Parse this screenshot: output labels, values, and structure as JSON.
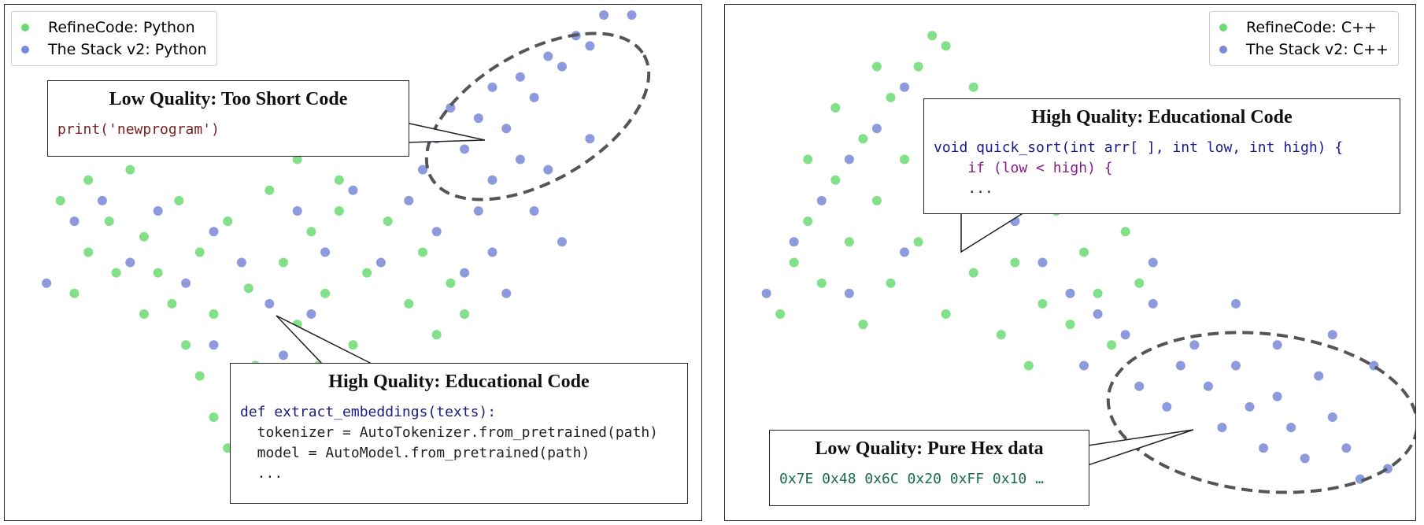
{
  "chart_data": [
    {
      "type": "scatter",
      "legend": "upper left",
      "xlim": [
        0,
        100
      ],
      "ylim": [
        0,
        100
      ],
      "series": [
        {
          "name": "RefineCode: Python",
          "color": "#2fcc3a",
          "x": [
            8,
            12,
            15,
            18,
            20,
            22,
            25,
            28,
            30,
            32,
            35,
            36,
            38,
            40,
            42,
            44,
            46,
            48,
            50,
            52,
            55,
            58,
            60,
            62,
            64,
            28,
            30,
            32,
            34,
            26,
            24,
            20,
            16,
            12,
            10,
            40,
            38,
            45,
            54,
            66,
            48,
            42,
            36
          ],
          "y": [
            62,
            66,
            58,
            68,
            55,
            48,
            62,
            52,
            40,
            58,
            45,
            30,
            64,
            50,
            38,
            56,
            44,
            60,
            34,
            48,
            58,
            42,
            52,
            36,
            46,
            28,
            20,
            14,
            24,
            34,
            42,
            40,
            48,
            52,
            44,
            26,
            18,
            30,
            28,
            40,
            66,
            70,
            72
          ]
        },
        {
          "name": "The Stack v2: Python",
          "color": "#4159c8",
          "x": [
            6,
            10,
            14,
            18,
            22,
            26,
            30,
            34,
            38,
            42,
            46,
            50,
            54,
            58,
            62,
            66,
            68,
            70,
            72,
            36,
            40,
            44,
            30,
            60,
            62,
            64,
            66,
            68,
            70,
            72,
            74,
            76,
            78,
            80,
            82,
            84,
            86,
            90,
            70,
            76,
            80,
            78,
            74,
            84
          ],
          "y": [
            46,
            58,
            62,
            50,
            60,
            46,
            56,
            50,
            42,
            60,
            52,
            64,
            50,
            62,
            56,
            48,
            60,
            52,
            44,
            22,
            32,
            40,
            34,
            68,
            74,
            80,
            72,
            78,
            84,
            76,
            86,
            82,
            90,
            88,
            94,
            92,
            98,
            98,
            66,
            60,
            54,
            68,
            70,
            74
          ]
        }
      ],
      "annotations": [
        {
          "title": "Low Quality: Too Short Code",
          "code": [
            "print('newprogram')"
          ]
        },
        {
          "title": "High Quality: Educational Code",
          "code": [
            "def extract_embeddings(texts):",
            "  tokenizer = AutoTokenizer.from_pretrained(path)",
            "  model = AutoModel.from_pretrained(path)",
            "  ..."
          ]
        }
      ]
    },
    {
      "type": "scatter",
      "legend": "upper right",
      "xlim": [
        0,
        100
      ],
      "ylim": [
        0,
        100
      ],
      "series": [
        {
          "name": "RefineCode: C++",
          "color": "#2fcc3a",
          "x": [
            8,
            10,
            12,
            14,
            16,
            18,
            20,
            22,
            24,
            26,
            28,
            30,
            32,
            34,
            36,
            38,
            40,
            42,
            44,
            46,
            48,
            50,
            52,
            54,
            56,
            20,
            24,
            28,
            32,
            36,
            40,
            44,
            12,
            16,
            22,
            30,
            60,
            58
          ],
          "y": [
            40,
            50,
            58,
            46,
            66,
            54,
            74,
            62,
            82,
            70,
            88,
            78,
            92,
            66,
            84,
            58,
            74,
            50,
            68,
            42,
            60,
            38,
            52,
            44,
            34,
            38,
            46,
            54,
            40,
            48,
            36,
            30,
            70,
            80,
            88,
            94,
            46,
            56
          ]
        },
        {
          "name": "The Stack v2: C++",
          "color": "#4159c8",
          "x": [
            6,
            10,
            14,
            18,
            22,
            26,
            30,
            34,
            38,
            42,
            46,
            50,
            54,
            58,
            62,
            66,
            60,
            64,
            68,
            70,
            72,
            74,
            76,
            78,
            80,
            82,
            84,
            86,
            88,
            90,
            92,
            94,
            96,
            74,
            80,
            88,
            62,
            52,
            26,
            18
          ],
          "y": [
            44,
            54,
            62,
            70,
            76,
            84,
            72,
            80,
            66,
            58,
            50,
            44,
            40,
            36,
            42,
            30,
            26,
            22,
            34,
            26,
            18,
            30,
            22,
            14,
            24,
            18,
            12,
            28,
            20,
            14,
            8,
            30,
            10,
            42,
            34,
            36,
            50,
            30,
            52,
            44
          ]
        }
      ],
      "annotations": [
        {
          "title": "High Quality: Educational Code",
          "code": [
            "void quick_sort(int arr[ ], int low, int high) {",
            "    if (low < high) {",
            "    ..."
          ]
        },
        {
          "title": "Low Quality: Pure Hex data",
          "code": [
            "0x7E 0x48 0x6C 0x20 0xFF 0x10 …"
          ]
        }
      ]
    }
  ]
}
